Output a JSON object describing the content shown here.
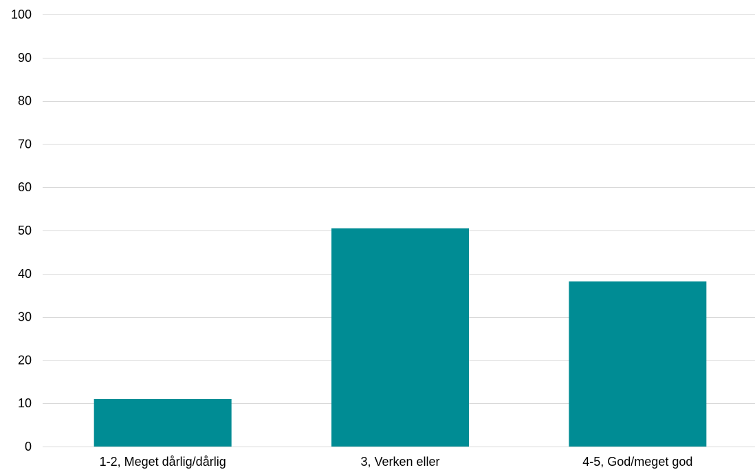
{
  "chart_data": {
    "type": "bar",
    "categories": [
      "1-2, Meget dårlig/dårlig",
      "3, Verken eller",
      "4-5, God/meget god"
    ],
    "values": [
      11,
      50.5,
      38.2
    ],
    "ylim": [
      0,
      100
    ],
    "yticks": [
      "0",
      "10",
      "20",
      "30",
      "40",
      "50",
      "60",
      "70",
      "80",
      "90",
      "100"
    ],
    "grid": true,
    "legend": "none",
    "colors": {
      "bar": "#008c94",
      "grid": "#d9d9d9",
      "text": "#000000"
    }
  }
}
